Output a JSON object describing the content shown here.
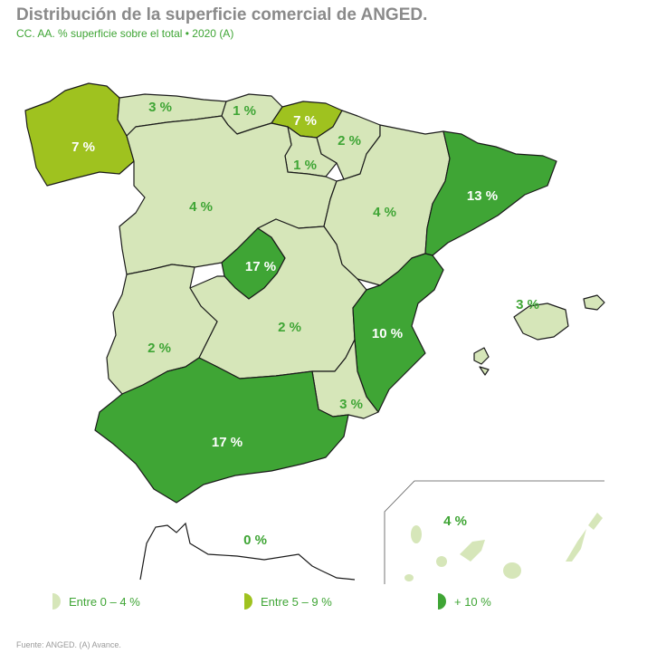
{
  "title": "Distribución de la superficie comercial de ANGED.",
  "subtitle": "CC. AA. % superficie sobre el total • 2020 (A)",
  "colors": {
    "low": "#d6e6b9",
    "mid": "#9fc21f",
    "high": "#3fa535",
    "border": "#1a1a1a",
    "label_green": "#3fa535",
    "label_white": "#ffffff"
  },
  "regions": {
    "galicia": "7 %",
    "asturias": "3 %",
    "cantabria": "1 %",
    "pais_vasco": "7 %",
    "navarra": "2 %",
    "la_rioja": "1 %",
    "castilla_leon": "4 %",
    "aragon": "4 %",
    "cataluna": "13 %",
    "madrid": "17 %",
    "extremadura": "2 %",
    "castilla_la_mancha": "2 %",
    "valencia": "10 %",
    "baleares": "3 %",
    "murcia": "3 %",
    "andalucia": "17 %",
    "ceuta_melilla": "0 %",
    "canarias": "4 %"
  },
  "legend": [
    {
      "label": "Entre 0 – 4 %",
      "color": "#d6e6b9",
      "icon": "half-circle-icon"
    },
    {
      "label": "Entre 5 – 9 %",
      "color": "#9fc21f",
      "icon": "half-circle-icon"
    },
    {
      "label": "+ 10 %",
      "color": "#3fa535",
      "icon": "half-circle-icon"
    }
  ],
  "source": "Fuente: ANGED. (A) Avance."
}
